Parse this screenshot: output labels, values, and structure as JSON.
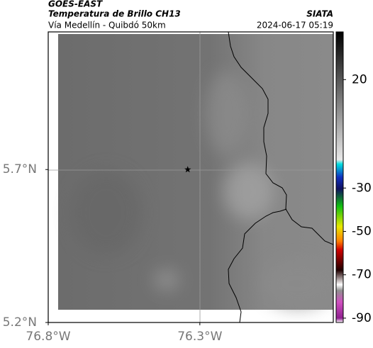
{
  "header": {
    "source": "GOES-EAST",
    "title": "Temperatura de Brillo CH13",
    "subtitle": "Vía Medellín - Quibdó 50km",
    "brand": "SIATA",
    "timestamp": "2024-06-17 05:19"
  },
  "map": {
    "xlim": [
      -76.8,
      -75.86
    ],
    "ylim": [
      5.2,
      6.15
    ],
    "xticks": [
      {
        "value": -76.8,
        "label": "76.8°W"
      },
      {
        "value": -76.3,
        "label": "76.3°W"
      }
    ],
    "yticks": [
      {
        "value": 5.7,
        "label": "5.7°N"
      },
      {
        "value": 5.2,
        "label": "5.2°N"
      }
    ],
    "marker": {
      "lon": -76.34,
      "lat": 5.7
    }
  },
  "colorbar": {
    "lim": [
      -92,
      42
    ],
    "ticks": [
      20,
      -30,
      -50,
      -70,
      -90
    ]
  }
}
